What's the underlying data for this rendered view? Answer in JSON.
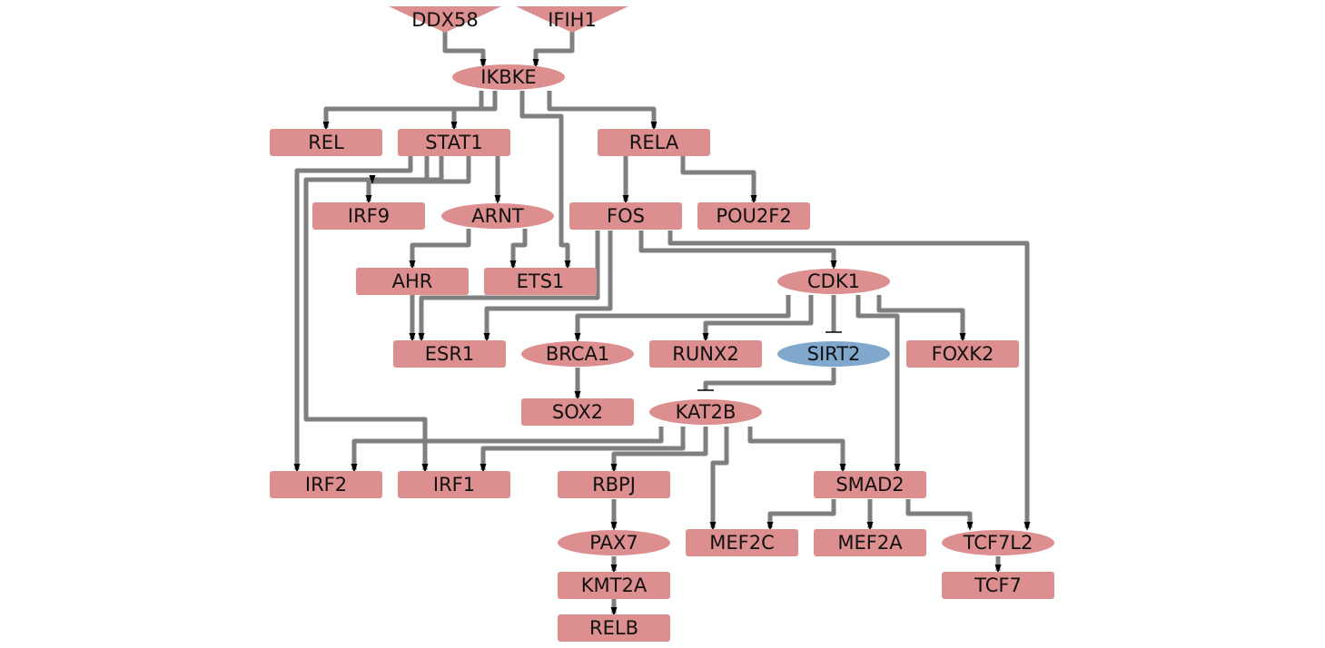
{
  "colors": {
    "activated": "#dd8e8e",
    "inhibited": "#7fa8cc",
    "edge": "#7f7f7f",
    "arrow": "#000000",
    "text": "#111111"
  },
  "nodes": [
    {
      "id": "DDX58",
      "label": "DDX58",
      "shape": "input-triangle",
      "state": "activated"
    },
    {
      "id": "IFIH1",
      "label": "IFIH1",
      "shape": "input-triangle",
      "state": "activated"
    },
    {
      "id": "IKBKE",
      "label": "IKBKE",
      "shape": "ellipse",
      "state": "activated"
    },
    {
      "id": "REL",
      "label": "REL",
      "shape": "rect",
      "state": "activated"
    },
    {
      "id": "STAT1",
      "label": "STAT1",
      "shape": "rect",
      "state": "activated"
    },
    {
      "id": "RELA",
      "label": "RELA",
      "shape": "rect",
      "state": "activated"
    },
    {
      "id": "IRF9",
      "label": "IRF9",
      "shape": "rect",
      "state": "activated"
    },
    {
      "id": "ARNT",
      "label": "ARNT",
      "shape": "ellipse",
      "state": "activated"
    },
    {
      "id": "FOS",
      "label": "FOS",
      "shape": "rect",
      "state": "activated"
    },
    {
      "id": "POU2F2",
      "label": "POU2F2",
      "shape": "rect",
      "state": "activated"
    },
    {
      "id": "AHR",
      "label": "AHR",
      "shape": "rect",
      "state": "activated"
    },
    {
      "id": "ETS1",
      "label": "ETS1",
      "shape": "rect",
      "state": "activated"
    },
    {
      "id": "CDK1",
      "label": "CDK1",
      "shape": "ellipse",
      "state": "activated"
    },
    {
      "id": "ESR1",
      "label": "ESR1",
      "shape": "rect",
      "state": "activated"
    },
    {
      "id": "BRCA1",
      "label": "BRCA1",
      "shape": "ellipse",
      "state": "activated"
    },
    {
      "id": "RUNX2",
      "label": "RUNX2",
      "shape": "rect",
      "state": "activated"
    },
    {
      "id": "SIRT2",
      "label": "SIRT2",
      "shape": "ellipse",
      "state": "inhibited"
    },
    {
      "id": "FOXK2",
      "label": "FOXK2",
      "shape": "rect",
      "state": "activated"
    },
    {
      "id": "SOX2",
      "label": "SOX2",
      "shape": "rect",
      "state": "activated"
    },
    {
      "id": "KAT2B",
      "label": "KAT2B",
      "shape": "ellipse",
      "state": "activated"
    },
    {
      "id": "IRF2",
      "label": "IRF2",
      "shape": "rect",
      "state": "activated"
    },
    {
      "id": "IRF1",
      "label": "IRF1",
      "shape": "rect",
      "state": "activated"
    },
    {
      "id": "RBPJ",
      "label": "RBPJ",
      "shape": "rect",
      "state": "activated"
    },
    {
      "id": "SMAD2",
      "label": "SMAD2",
      "shape": "rect",
      "state": "activated"
    },
    {
      "id": "PAX7",
      "label": "PAX7",
      "shape": "ellipse",
      "state": "activated"
    },
    {
      "id": "MEF2C",
      "label": "MEF2C",
      "shape": "rect",
      "state": "activated"
    },
    {
      "id": "MEF2A",
      "label": "MEF2A",
      "shape": "rect",
      "state": "activated"
    },
    {
      "id": "TCF7L2",
      "label": "TCF7L2",
      "shape": "ellipse",
      "state": "activated"
    },
    {
      "id": "KMT2A",
      "label": "KMT2A",
      "shape": "rect",
      "state": "activated"
    },
    {
      "id": "TCF7",
      "label": "TCF7",
      "shape": "rect",
      "state": "activated"
    },
    {
      "id": "RELB",
      "label": "RELB",
      "shape": "rect",
      "state": "activated"
    }
  ],
  "edges": [
    {
      "from": "DDX58",
      "to": "IKBKE",
      "type": "activation"
    },
    {
      "from": "IFIH1",
      "to": "IKBKE",
      "type": "activation"
    },
    {
      "from": "IKBKE",
      "to": "REL",
      "type": "activation"
    },
    {
      "from": "IKBKE",
      "to": "STAT1",
      "type": "activation"
    },
    {
      "from": "IKBKE",
      "to": "RELA",
      "type": "activation"
    },
    {
      "from": "IKBKE",
      "to": "ETS1",
      "type": "activation"
    },
    {
      "from": "STAT1",
      "to": "IRF9",
      "type": "activation"
    },
    {
      "from": "STAT1",
      "to": "ARNT",
      "type": "activation"
    },
    {
      "from": "STAT1",
      "to": "IRF2",
      "type": "activation"
    },
    {
      "from": "STAT1",
      "to": "IRF1",
      "type": "activation"
    },
    {
      "from": "RELA",
      "to": "FOS",
      "type": "activation"
    },
    {
      "from": "RELA",
      "to": "POU2F2",
      "type": "activation"
    },
    {
      "from": "ARNT",
      "to": "AHR",
      "type": "activation"
    },
    {
      "from": "ARNT",
      "to": "ETS1",
      "type": "activation"
    },
    {
      "from": "FOS",
      "to": "ESR1",
      "type": "activation"
    },
    {
      "from": "FOS",
      "to": "CDK1",
      "type": "activation"
    },
    {
      "from": "FOS",
      "to": "TCF7L2",
      "type": "activation"
    },
    {
      "from": "AHR",
      "to": "ESR1",
      "type": "activation"
    },
    {
      "from": "CDK1",
      "to": "BRCA1",
      "type": "activation"
    },
    {
      "from": "CDK1",
      "to": "RUNX2",
      "type": "activation"
    },
    {
      "from": "CDK1",
      "to": "SIRT2",
      "type": "inhibition"
    },
    {
      "from": "CDK1",
      "to": "FOXK2",
      "type": "activation"
    },
    {
      "from": "CDK1",
      "to": "SMAD2",
      "type": "activation"
    },
    {
      "from": "BRCA1",
      "to": "SOX2",
      "type": "activation"
    },
    {
      "from": "SIRT2",
      "to": "KAT2B",
      "type": "inhibition"
    },
    {
      "from": "KAT2B",
      "to": "IRF2",
      "type": "activation"
    },
    {
      "from": "KAT2B",
      "to": "IRF1",
      "type": "activation"
    },
    {
      "from": "KAT2B",
      "to": "RBPJ",
      "type": "activation"
    },
    {
      "from": "KAT2B",
      "to": "MEF2C",
      "type": "activation"
    },
    {
      "from": "KAT2B",
      "to": "SMAD2",
      "type": "activation"
    },
    {
      "from": "SMAD2",
      "to": "MEF2C",
      "type": "activation"
    },
    {
      "from": "SMAD2",
      "to": "MEF2A",
      "type": "activation"
    },
    {
      "from": "SMAD2",
      "to": "TCF7L2",
      "type": "activation"
    },
    {
      "from": "RBPJ",
      "to": "PAX7",
      "type": "activation"
    },
    {
      "from": "PAX7",
      "to": "KMT2A",
      "type": "activation"
    },
    {
      "from": "KMT2A",
      "to": "RELB",
      "type": "activation"
    },
    {
      "from": "TCF7L2",
      "to": "TCF7",
      "type": "activation"
    }
  ]
}
